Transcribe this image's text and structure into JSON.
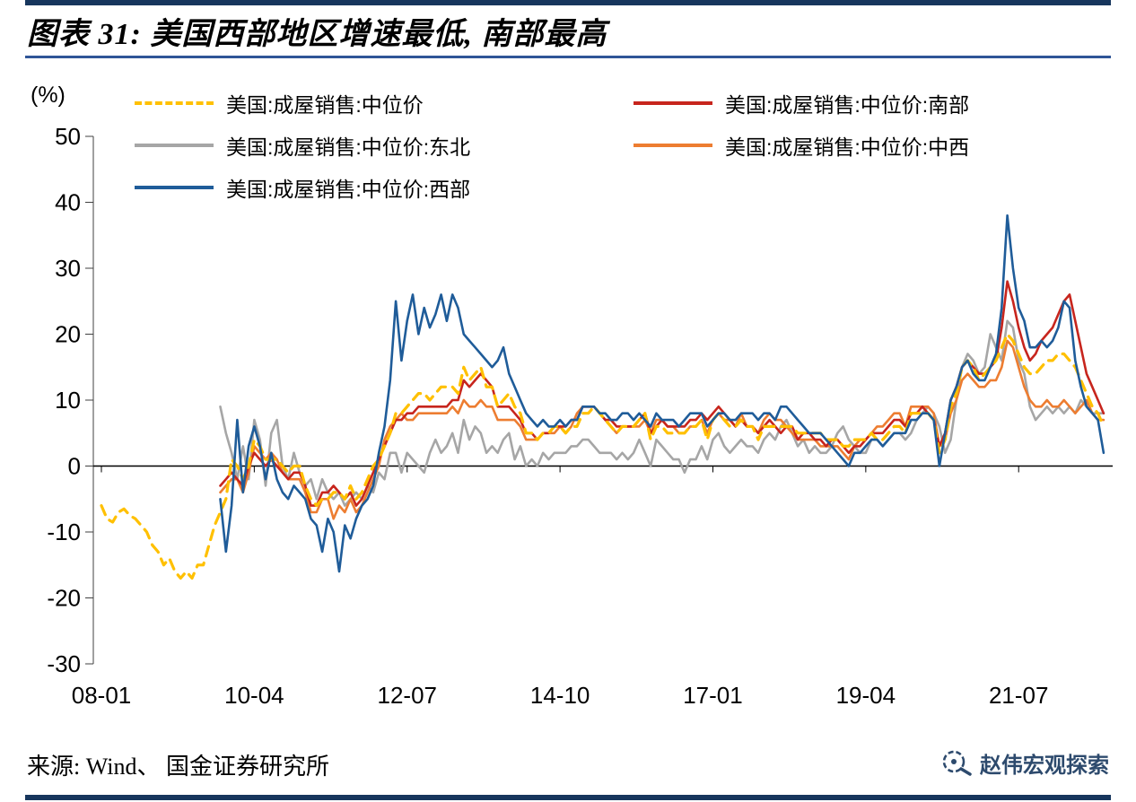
{
  "header": {
    "title": "图表 31: 美国西部地区增速最低, 南部最高"
  },
  "footer": {
    "source": "来源: Wind、 国金证券研究所",
    "brand": "赵伟宏观探索"
  },
  "chart_data": {
    "type": "line",
    "title": "美国西部地区增速最低, 南部最高",
    "unit_label": "(%)",
    "ylabel": "(%)",
    "ylim": [
      -30,
      50
    ],
    "y_ticks": [
      50,
      40,
      30,
      20,
      10,
      0,
      -10,
      -20,
      -30
    ],
    "x_ticks": [
      "08-01",
      "10-04",
      "12-07",
      "14-10",
      "17-01",
      "19-04",
      "21-07"
    ],
    "x_tick_month_indices": [
      0,
      27,
      54,
      81,
      108,
      135,
      162
    ],
    "x_start": "2008-01",
    "x_end": "2022-10",
    "frequency": "monthly",
    "legend_position": "top",
    "grid": false,
    "series": [
      {
        "name": "美国:成屋销售:中位价",
        "color": "#FFC000",
        "dash": true,
        "values": [
          -6,
          -8,
          -8.5,
          -7,
          -6.5,
          -7.5,
          -8,
          -9,
          -10,
          -12,
          -13,
          -15,
          -14,
          -16,
          -17,
          -16,
          -17,
          -15,
          -15,
          -12,
          -9,
          -7,
          -5,
          1,
          0,
          -2,
          0,
          4,
          3,
          1,
          1,
          1,
          0,
          -1,
          0,
          0,
          -3,
          -5,
          -6,
          -5,
          -5,
          -4,
          -4,
          -5,
          -3,
          -5,
          -4,
          -2,
          0,
          1,
          3,
          5,
          8,
          8,
          9,
          10,
          11,
          11,
          10,
          11,
          12,
          12,
          12,
          11,
          15,
          13,
          14,
          15,
          12,
          12,
          9,
          10,
          11,
          9,
          8,
          5,
          5,
          4,
          5,
          5,
          6,
          6,
          5,
          6,
          6,
          8,
          8,
          9,
          8,
          7,
          6,
          5,
          6,
          6,
          6,
          7,
          8,
          4,
          6,
          6,
          5,
          5,
          5,
          5,
          6,
          6,
          7,
          4,
          7,
          8,
          7,
          6,
          6,
          7,
          6,
          6,
          4,
          6,
          6,
          6,
          6,
          6,
          6,
          5,
          5,
          5,
          5,
          5,
          4,
          4,
          4,
          3,
          3,
          4,
          4,
          4,
          5,
          4,
          4,
          5,
          6,
          6,
          5,
          8,
          8,
          8,
          8,
          7,
          2,
          4,
          9,
          11,
          15,
          16,
          15,
          13,
          14,
          15,
          16,
          18,
          20,
          19,
          17,
          15,
          14,
          14,
          15,
          16,
          16,
          17,
          17,
          16,
          15,
          13,
          11,
          9,
          8,
          6
        ]
      },
      {
        "name": "美国:成屋销售:中位价:南部",
        "color": "#C7251D",
        "dash": false,
        "values": [
          null,
          null,
          null,
          null,
          null,
          null,
          null,
          null,
          null,
          null,
          null,
          null,
          null,
          null,
          null,
          null,
          null,
          null,
          null,
          null,
          null,
          -3,
          -2,
          -1,
          -2,
          -3,
          0,
          2,
          1,
          0,
          1,
          0,
          -1,
          -2,
          -1,
          -1,
          -3,
          -6,
          -6,
          -4,
          -4,
          -3,
          -4,
          -5,
          -4,
          -6,
          -5,
          -3,
          -1,
          1,
          3,
          5,
          7,
          7,
          8,
          8,
          9,
          9,
          9,
          9,
          9,
          9,
          10,
          10,
          13,
          12,
          13,
          14,
          13,
          12,
          9,
          9,
          9,
          8,
          7,
          5,
          5,
          4,
          5,
          5,
          6,
          6,
          6,
          7,
          7,
          9,
          9,
          9,
          8,
          7,
          7,
          6,
          6,
          6,
          6,
          7,
          8,
          5,
          6,
          7,
          6,
          6,
          6,
          6,
          7,
          7,
          8,
          7,
          8,
          9,
          8,
          7,
          6,
          7,
          6,
          6,
          5,
          6,
          7,
          6,
          5,
          6,
          6,
          4,
          5,
          5,
          4,
          4,
          3,
          4,
          4,
          3,
          2,
          3,
          3,
          4,
          5,
          5,
          5,
          6,
          7,
          7,
          6,
          8,
          8,
          9,
          8,
          7,
          3,
          5,
          10,
          12,
          15,
          16,
          15,
          14,
          14,
          15,
          16,
          21,
          28,
          25,
          21,
          18,
          16,
          17,
          19,
          20,
          21,
          23,
          25,
          26,
          22,
          18,
          14,
          12,
          10,
          8
        ]
      },
      {
        "name": "美国:成屋销售:中位价:东北",
        "color": "#A6A6A6",
        "dash": false,
        "values": [
          null,
          null,
          null,
          null,
          null,
          null,
          null,
          null,
          null,
          null,
          null,
          null,
          null,
          null,
          null,
          null,
          null,
          null,
          null,
          null,
          null,
          9,
          5,
          2,
          -2,
          3,
          -2,
          7,
          4,
          -3,
          5,
          7,
          0,
          -2,
          2,
          -1,
          -3,
          -2,
          -5,
          -2,
          -4,
          -5,
          -4,
          -6,
          -5,
          -4,
          -5,
          -3,
          -4,
          -1,
          -2,
          2,
          2,
          -1,
          2,
          1,
          0,
          -1,
          2,
          4,
          2,
          3,
          5,
          2,
          7,
          4,
          6,
          5,
          2,
          3,
          2,
          4,
          5,
          1,
          3,
          0,
          1,
          0,
          2,
          1,
          2,
          2,
          2,
          3,
          3,
          4,
          4,
          3,
          2,
          2,
          2,
          1,
          2,
          1,
          2,
          4,
          2,
          0,
          4,
          3,
          2,
          1,
          1,
          -1,
          1,
          1,
          3,
          1,
          4,
          5,
          3,
          2,
          3,
          4,
          3,
          3,
          2,
          4,
          5,
          4,
          6,
          7,
          5,
          3,
          4,
          2,
          3,
          2,
          2,
          3,
          5,
          6,
          4,
          3,
          2,
          2,
          4,
          4,
          3,
          4,
          5,
          5,
          4,
          5,
          7,
          8,
          9,
          8,
          6,
          2,
          4,
          10,
          15,
          17,
          16,
          14,
          15,
          20,
          18,
          16,
          22,
          21,
          16,
          14,
          9,
          7,
          8,
          9,
          8,
          9,
          8,
          9,
          8,
          10,
          9,
          8,
          8,
          8
        ]
      },
      {
        "name": "美国:成屋销售:中位价:中西",
        "color": "#ED7D31",
        "dash": false,
        "values": [
          null,
          null,
          null,
          null,
          null,
          null,
          null,
          null,
          null,
          null,
          null,
          null,
          null,
          null,
          null,
          null,
          null,
          null,
          null,
          null,
          null,
          -4,
          -3,
          -2,
          -2,
          -4,
          -1,
          3,
          2,
          1,
          2,
          1,
          -1,
          -2,
          -2,
          -2,
          -4,
          -7,
          -7,
          -5,
          -5,
          -8,
          -6,
          -7,
          -5,
          -7,
          -6,
          -4,
          -2,
          0,
          4,
          6,
          7,
          8,
          7,
          7,
          8,
          8,
          8,
          8,
          8,
          8,
          9,
          8,
          10,
          9,
          9,
          10,
          9,
          9,
          7,
          7,
          7,
          7,
          6,
          4,
          4,
          4,
          5,
          5,
          5,
          6,
          5,
          6,
          8,
          9,
          9,
          9,
          8,
          7,
          6,
          5,
          6,
          6,
          6,
          6,
          7,
          5,
          7,
          7,
          6,
          6,
          5,
          5,
          6,
          6,
          7,
          5,
          7,
          8,
          7,
          7,
          6,
          8,
          6,
          6,
          5,
          7,
          8,
          7,
          7,
          6,
          5,
          4,
          4,
          4,
          4,
          3,
          3,
          3,
          3,
          2,
          1,
          3,
          4,
          4,
          5,
          6,
          6,
          7,
          8,
          8,
          6,
          9,
          9,
          9,
          9,
          8,
          3,
          4,
          8,
          10,
          13,
          14,
          13,
          12,
          12,
          13,
          13,
          15,
          19,
          18,
          15,
          12,
          10,
          9,
          9,
          10,
          9,
          9,
          10,
          9,
          8,
          9,
          10,
          8,
          7,
          7
        ]
      },
      {
        "name": "美国:成屋销售:中位价:西部",
        "color": "#1F5C99",
        "dash": false,
        "values": [
          null,
          null,
          null,
          null,
          null,
          null,
          null,
          null,
          null,
          null,
          null,
          null,
          null,
          null,
          null,
          null,
          null,
          null,
          null,
          null,
          null,
          -5,
          -13,
          -6,
          7,
          -4,
          3,
          6,
          3,
          -2,
          2,
          -2,
          -4,
          -5,
          -3,
          -4,
          -5,
          -8,
          -9,
          -13,
          -8,
          -10,
          -16,
          -9,
          -11,
          -8,
          -6,
          -5,
          -3,
          2,
          6,
          13,
          25,
          16,
          22,
          26,
          20,
          24,
          21,
          23,
          26,
          22,
          26,
          24,
          20,
          19,
          18,
          17,
          16,
          15,
          16,
          18,
          14,
          12,
          10,
          8,
          7,
          6,
          7,
          6,
          6,
          7,
          6,
          7,
          7,
          9,
          9,
          9,
          8,
          8,
          7,
          7,
          8,
          8,
          7,
          8,
          7,
          6,
          8,
          7,
          7,
          7,
          6,
          7,
          8,
          8,
          8,
          6,
          7,
          8,
          8,
          7,
          7,
          8,
          8,
          8,
          7,
          8,
          8,
          7,
          9,
          9,
          8,
          7,
          6,
          5,
          5,
          5,
          4,
          3,
          2,
          1,
          0,
          2,
          2,
          3,
          4,
          4,
          3,
          4,
          5,
          5,
          5,
          7,
          7,
          8,
          8,
          7,
          0,
          5,
          10,
          12,
          15,
          16,
          14,
          13,
          13,
          15,
          17,
          24,
          38,
          30,
          24,
          22,
          18,
          18,
          19,
          18,
          19,
          21,
          25,
          24,
          16,
          12,
          9,
          8,
          7,
          2
        ]
      }
    ]
  }
}
